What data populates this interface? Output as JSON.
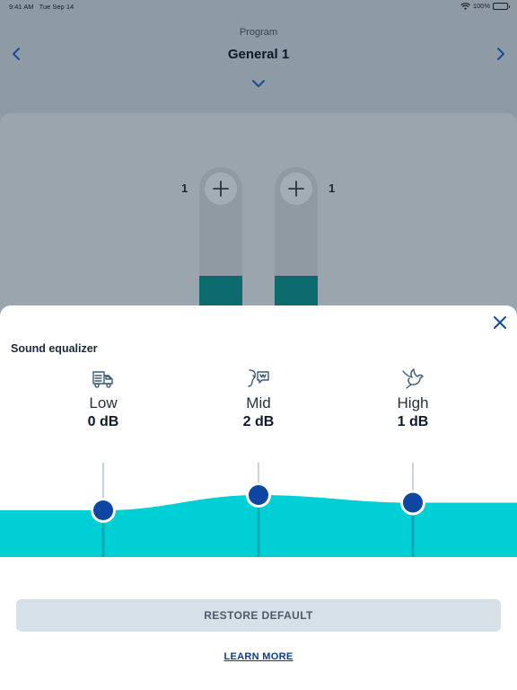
{
  "status_bar": {
    "time": "9:41 AM",
    "date": "Tue Sep 14",
    "battery": "100%",
    "wifi_icon": "wifi-icon",
    "battery_level": 1.0
  },
  "header": {
    "label": "Program",
    "program_name": "General 1",
    "prev_icon": "chevron-left-icon",
    "next_icon": "chevron-right-icon",
    "dropdown_icon": "chevron-down-icon"
  },
  "volume": {
    "left": {
      "value": "1",
      "level": 0.29
    },
    "right": {
      "value": "1",
      "level": 0.29
    },
    "plus_icon": "plus-icon"
  },
  "sheet": {
    "title": "Sound equalizer",
    "close_icon": "close-icon",
    "bands": [
      {
        "name": "Low",
        "value": "0 dB",
        "db": 0,
        "icon": "truck-icon"
      },
      {
        "name": "Mid",
        "value": "2 dB",
        "db": 2,
        "icon": "speech-icon"
      },
      {
        "name": "High",
        "value": "1 dB",
        "db": 1,
        "icon": "bird-icon"
      }
    ],
    "restore_label": "RESTORE DEFAULT",
    "learn_more_label": "LEARN MORE"
  },
  "colors": {
    "accent": "#0d47a1",
    "eq_fill": "#00cfd6",
    "volume_fill": "#0b6a6c",
    "link": "#0d3d8a",
    "icon": "#3b5a78"
  }
}
